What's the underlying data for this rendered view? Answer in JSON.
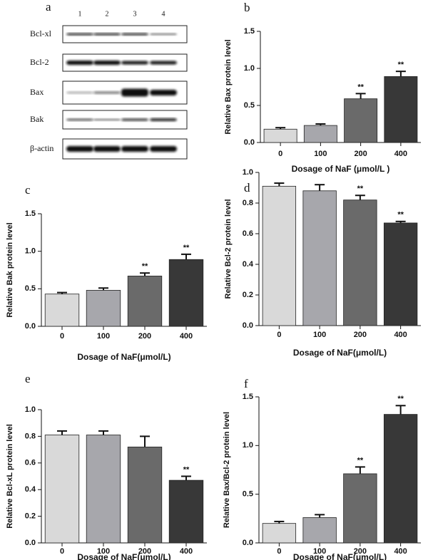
{
  "blot": {
    "label": "a",
    "lanes": [
      "1",
      "2",
      "3",
      "4"
    ],
    "rows": [
      "Bcl-xl",
      "Bcl-2",
      "Bax",
      "Bak",
      "β-actin"
    ]
  },
  "chart_data": [
    {
      "type": "bar",
      "label": "b",
      "ylabel": "Relative Bax protein level",
      "xlabel": "Dosage of NaF (μmol/L )",
      "categories": [
        "0",
        "100",
        "200",
        "400"
      ],
      "values": [
        0.18,
        0.23,
        0.59,
        0.89
      ],
      "errors": [
        0.02,
        0.02,
        0.07,
        0.07
      ],
      "significance": [
        null,
        null,
        "**",
        "**"
      ],
      "colors": [
        "#d9d9d9",
        "#a7a7ac",
        "#6a6a6a",
        "#383838"
      ],
      "ylim": [
        0,
        1.5
      ],
      "yticks": [
        {
          "value": 0,
          "label": "0.0"
        },
        0.5,
        {
          "value": 1,
          "label": "1.0"
        },
        1.5
      ]
    },
    {
      "type": "bar",
      "label": "c",
      "ylabel": "Relative Bak protein level",
      "xlabel": "Dosage of NaF(μmol/L)",
      "categories": [
        "0",
        "100",
        "200",
        "400"
      ],
      "values": [
        0.43,
        0.48,
        0.67,
        0.89
      ],
      "errors": [
        0.02,
        0.03,
        0.04,
        0.07
      ],
      "significance": [
        null,
        null,
        "**",
        "**"
      ],
      "colors": [
        "#d9d9d9",
        "#a7a7ac",
        "#6a6a6a",
        "#383838"
      ],
      "ylim": [
        0,
        1.5
      ],
      "yticks": [
        {
          "value": 0,
          "label": "0.0"
        },
        0.5,
        {
          "value": 1,
          "label": "1.0"
        },
        1.5
      ]
    },
    {
      "type": "bar",
      "label": "d",
      "ylabel": "Relative Bcl-2 protein level",
      "xlabel": "Dosage of NaF(μmol/L)",
      "categories": [
        "0",
        "100",
        "200",
        "400"
      ],
      "values": [
        0.91,
        0.88,
        0.82,
        0.67
      ],
      "errors": [
        0.02,
        0.04,
        0.03,
        0.01
      ],
      "significance": [
        null,
        null,
        "**",
        "**"
      ],
      "colors": [
        "#d9d9d9",
        "#a7a7ac",
        "#6a6a6a",
        "#383838"
      ],
      "ylim": [
        0,
        1
      ],
      "yticks": [
        {
          "value": 0,
          "label": "0.0"
        },
        0.2,
        0.4,
        0.6,
        0.8,
        {
          "value": 1,
          "label": "1.0"
        }
      ]
    },
    {
      "type": "bar",
      "label": "e",
      "ylabel": "Relative Bcl-xL protein level",
      "xlabel": "Dosage of NaF(μmol/L)",
      "categories": [
        "0",
        "100",
        "200",
        "400"
      ],
      "values": [
        0.81,
        0.81,
        0.72,
        0.47
      ],
      "errors": [
        0.03,
        0.03,
        0.08,
        0.03
      ],
      "significance": [
        null,
        null,
        null,
        "**"
      ],
      "colors": [
        "#d9d9d9",
        "#a7a7ac",
        "#6a6a6a",
        "#383838"
      ],
      "ylim": [
        0,
        1
      ],
      "yticks": [
        {
          "value": 0,
          "label": "0.0"
        },
        0.2,
        0.4,
        0.6,
        0.8,
        {
          "value": 1,
          "label": "1.0"
        }
      ]
    },
    {
      "type": "bar",
      "label": "f",
      "ylabel": "Relative Bax/Bcl-2 protein level",
      "xlabel": "Dosage of NaF(μmol/L)",
      "categories": [
        "0",
        "100",
        "200",
        "400"
      ],
      "values": [
        0.2,
        0.26,
        0.71,
        1.32
      ],
      "errors": [
        0.02,
        0.03,
        0.07,
        0.09
      ],
      "significance": [
        null,
        null,
        "**",
        "**"
      ],
      "colors": [
        "#d9d9d9",
        "#a7a7ac",
        "#6a6a6a",
        "#383838"
      ],
      "ylim": [
        0,
        1.5
      ],
      "yticks": [
        {
          "value": 0,
          "label": "0.0"
        },
        0.5,
        {
          "value": 1,
          "label": "1.0"
        },
        1.5
      ]
    }
  ]
}
